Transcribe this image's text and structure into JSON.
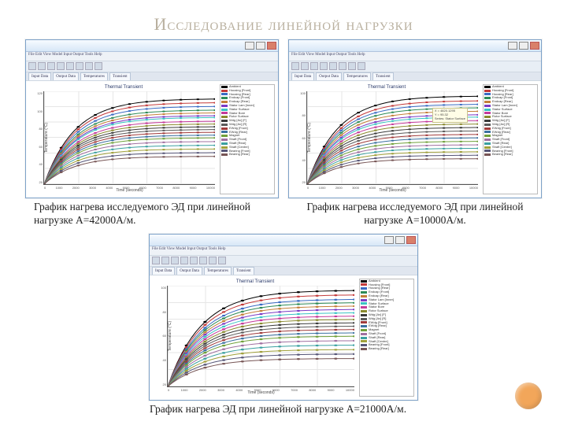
{
  "title": "Исследование линейной нагрузки",
  "captions": {
    "c1": "График нагрева исследуемого ЭД при линейной нагрузке А=42000А/м.",
    "c2": "График нагрева исследуемого ЭД при линейной нагрузке А=10000А/м.",
    "c3": "График нагрева ЭД при линейной нагрузке А=21000А/м."
  },
  "chart": {
    "type": "line",
    "title": "Thermal Transient",
    "xlabel": "Time (seconds)",
    "ylabel": "Temperature (°C)",
    "xrange": [
      0,
      10000
    ],
    "xticks": [
      "0",
      "1000",
      "2000",
      "3000",
      "4000",
      "5000",
      "6000",
      "7000",
      "8000",
      "9000",
      "10000"
    ],
    "yrange_1": [
      20,
      120
    ],
    "yticks_1": [
      "20",
      "40",
      "60",
      "80",
      "100",
      "120"
    ],
    "yrange_2": [
      20,
      100
    ],
    "yticks_2": [
      "20",
      "40",
      "60",
      "80",
      "100"
    ],
    "yrange_3": [
      20,
      110
    ],
    "yticks_3": [
      "20",
      "40",
      "60",
      "80",
      "100"
    ],
    "grid_color": "#e6e6e6",
    "background_color": "#ffffff",
    "line_width": 1.2,
    "marker_size": 2,
    "legend_items": [
      "Ambient",
      "Housing [Front]",
      "Housing [Rear]",
      "Endcap [Front]",
      "Endcap [Rear]",
      "Stator Lam [Inner]",
      "Stator Surface",
      "Stator Bore",
      "Rotor Surface",
      "Wdg [Av] [F]",
      "Wdg [Av] [R]",
      "EWdg [Front]",
      "EWdg [Rear]",
      "Magnet",
      "Shaft [Front]",
      "Shaft [Rear]",
      "Shaft [Centre]",
      "Bearing [Front]",
      "Bearing [Rear]"
    ],
    "series_colors": [
      "#000000",
      "#c43a3a",
      "#3a6bc4",
      "#2e8b57",
      "#c47f3a",
      "#7b3ac4",
      "#3ac4c4",
      "#c43a9b",
      "#8a8a2e",
      "#3a3a3a",
      "#5a5a5a",
      "#a03a3a",
      "#3a70a0",
      "#70a03a",
      "#a070a0",
      "#3aa0a0",
      "#a0a03a",
      "#555577",
      "#775555"
    ],
    "asymptotes_1": [
      112,
      108,
      104,
      100,
      97,
      94,
      92,
      88,
      85,
      82,
      79,
      76,
      73,
      70,
      66,
      62,
      58,
      54,
      50
    ],
    "asymptotes_2": [
      96,
      92,
      89,
      86,
      83,
      80,
      78,
      75,
      72,
      69,
      66,
      63,
      60,
      57,
      54,
      51,
      48,
      45,
      42
    ],
    "asymptotes_3": [
      106,
      102,
      98,
      95,
      92,
      89,
      86,
      83,
      80,
      77,
      74,
      71,
      68,
      65,
      61,
      57,
      53,
      49,
      45
    ],
    "tau": 1800
  },
  "window": {
    "menu": "File  Edit  View  Model  Input  Output  Tools  Help",
    "tabs": [
      "Input Data",
      "Output Data",
      "Temperatures",
      "Transient"
    ],
    "tooltip": [
      "X = 4820.1295",
      "Y = 95.32",
      "Series: Stator Surface"
    ]
  },
  "colors": {
    "title_color": "#b9b09f",
    "window_chrome": "#d7e7f7",
    "accent_dot": "#f2a65a"
  }
}
